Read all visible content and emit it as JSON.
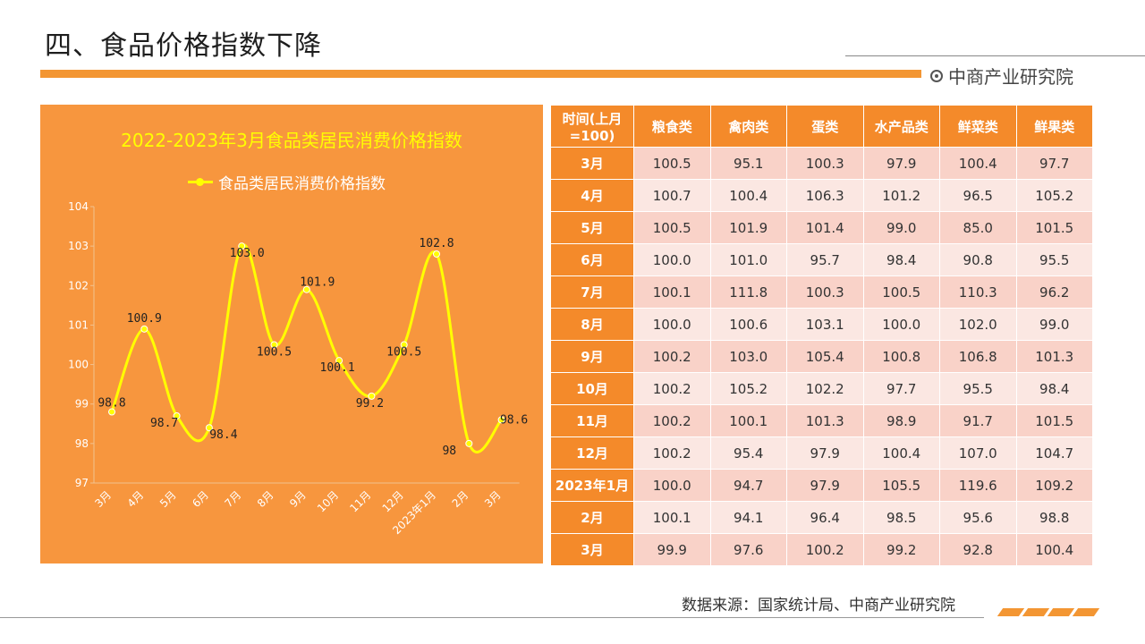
{
  "page": {
    "title": "四、食品价格指数下降",
    "brand": "中商产业研究院",
    "source": "数据来源：国家统计局、中商产业研究院"
  },
  "colors": {
    "accent": "#f39633",
    "panel": "#f7963e",
    "line": "#ffff00",
    "table_head": "#f48a2a",
    "row_odd": "#f9d2c8",
    "row_even": "#fbe7e2"
  },
  "chart_data": {
    "type": "line",
    "title": "2022-2023年3月食品类居民消费价格指数",
    "legend_position": "top",
    "grid": false,
    "categories": [
      "3月",
      "4月",
      "5月",
      "6月",
      "7月",
      "8月",
      "9月",
      "10月",
      "11月",
      "12月",
      "2023年1月",
      "2月",
      "3月"
    ],
    "series": [
      {
        "name": "食品类居民消费价格指数",
        "values": [
          98.8,
          100.9,
          98.7,
          98.4,
          103.0,
          100.5,
          101.9,
          100.1,
          99.2,
          100.5,
          102.8,
          98,
          98.6
        ],
        "labels": [
          "98.8",
          "100.9",
          "98.7",
          "98.4",
          "103.0",
          "100.5",
          "101.9",
          "100.1",
          "99.2",
          "100.5",
          "102.8",
          "98",
          "98.6"
        ]
      }
    ],
    "ylim": [
      97,
      104
    ],
    "yticks": [
      "97",
      "98",
      "99",
      "100",
      "101",
      "102",
      "103",
      "104"
    ]
  },
  "table": {
    "headers": [
      "时间(上月=100)",
      "粮食类",
      "禽肉类",
      "蛋类",
      "水产品类",
      "鲜菜类",
      "鲜果类"
    ],
    "rows": [
      [
        "3月",
        "100.5",
        "95.1",
        "100.3",
        "97.9",
        "100.4",
        "97.7"
      ],
      [
        "4月",
        "100.7",
        "100.4",
        "106.3",
        "101.2",
        "96.5",
        "105.2"
      ],
      [
        "5月",
        "100.5",
        "101.9",
        "101.4",
        "99.0",
        "85.0",
        "101.5"
      ],
      [
        "6月",
        "100.0",
        "101.0",
        "95.7",
        "98.4",
        "90.8",
        "95.5"
      ],
      [
        "7月",
        "100.1",
        "111.8",
        "100.3",
        "100.5",
        "110.3",
        "96.2"
      ],
      [
        "8月",
        "100.0",
        "100.6",
        "103.1",
        "100.0",
        "102.0",
        "99.0"
      ],
      [
        "9月",
        "100.2",
        "103.0",
        "105.4",
        "100.8",
        "106.8",
        "101.3"
      ],
      [
        "10月",
        "100.2",
        "105.2",
        "102.2",
        "97.7",
        "95.5",
        "98.4"
      ],
      [
        "11月",
        "100.2",
        "100.1",
        "101.3",
        "98.9",
        "91.7",
        "101.5"
      ],
      [
        "12月",
        "100.2",
        "95.4",
        "97.9",
        "100.4",
        "107.0",
        "104.7"
      ],
      [
        "2023年1月",
        "100.0",
        "94.7",
        "97.9",
        "105.5",
        "119.6",
        "109.2"
      ],
      [
        "2月",
        "100.1",
        "94.1",
        "96.4",
        "98.5",
        "95.6",
        "98.8"
      ],
      [
        "3月",
        "99.9",
        "97.6",
        "100.2",
        "99.2",
        "92.8",
        "100.4"
      ]
    ]
  }
}
